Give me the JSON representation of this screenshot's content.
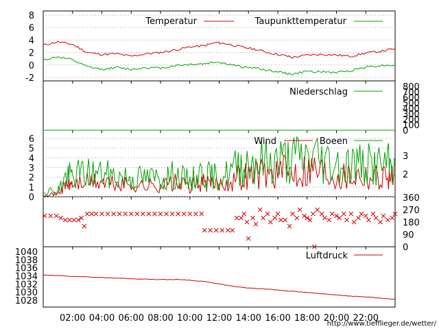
{
  "chart_data": [
    {
      "type": "line",
      "panel": "temperature",
      "ylim": [
        -2,
        8
      ],
      "yticks": [
        "-2",
        "0",
        "2",
        "4",
        "6",
        "8"
      ],
      "grid": true,
      "legend_position": "top-right",
      "series": [
        {
          "name": "Temperatur",
          "color": "#cc0000",
          "points": [
            [
              0,
              3.2
            ],
            [
              1,
              3.7
            ],
            [
              2,
              3.3
            ],
            [
              3,
              2.0
            ],
            [
              4,
              1.7
            ],
            [
              5,
              1.8
            ],
            [
              6,
              1.4
            ],
            [
              7,
              1.8
            ],
            [
              8,
              2.0
            ],
            [
              9,
              2.4
            ],
            [
              10,
              2.9
            ],
            [
              11,
              3.1
            ],
            [
              11.8,
              3.6
            ],
            [
              12.5,
              3.4
            ],
            [
              13.5,
              2.9
            ],
            [
              14.5,
              2.5
            ],
            [
              15.5,
              1.9
            ],
            [
              16.5,
              1.5
            ],
            [
              17,
              1.2
            ],
            [
              18,
              1.6
            ],
            [
              19,
              1.7
            ],
            [
              20,
              1.6
            ],
            [
              21,
              1.4
            ],
            [
              22,
              1.9
            ],
            [
              23,
              2.2
            ],
            [
              24,
              2.6
            ]
          ]
        },
        {
          "name": "Taupunkttemperatur",
          "color": "#00a000",
          "points": [
            [
              0,
              0.8
            ],
            [
              1,
              1.3
            ],
            [
              2,
              0.8
            ],
            [
              3,
              -0.3
            ],
            [
              4,
              -0.7
            ],
            [
              5,
              -0.4
            ],
            [
              6,
              -0.7
            ],
            [
              7,
              -0.4
            ],
            [
              8,
              -0.5
            ],
            [
              9,
              -0.1
            ],
            [
              10,
              0.1
            ],
            [
              11,
              0.2
            ],
            [
              11.8,
              0.5
            ],
            [
              12.5,
              0.2
            ],
            [
              13.5,
              -0.3
            ],
            [
              14.5,
              -0.5
            ],
            [
              15.5,
              -0.9
            ],
            [
              16.5,
              -1.3
            ],
            [
              17,
              -1.5
            ],
            [
              18,
              -1.0
            ],
            [
              19,
              -1.1
            ],
            [
              20,
              -1.2
            ],
            [
              21,
              -0.9
            ],
            [
              22,
              -0.3
            ],
            [
              23,
              -0.1
            ],
            [
              24,
              0.0
            ]
          ]
        }
      ]
    },
    {
      "type": "line",
      "panel": "precipitation",
      "ylim": [
        0,
        800
      ],
      "yticks": [
        "0",
        "100",
        "200",
        "300",
        "400",
        "500",
        "600",
        "700",
        "800"
      ],
      "series": [
        {
          "name": "Niederschlag",
          "color": "#00a000",
          "points": [
            [
              0,
              0
            ],
            [
              24,
              0
            ]
          ]
        }
      ]
    },
    {
      "type": "line",
      "panel": "wind",
      "ylim": [
        0,
        6
      ],
      "yticks": [
        "0",
        "1",
        "2",
        "3",
        "4",
        "5",
        "6"
      ],
      "yticks_right": [
        "2",
        "3"
      ],
      "series": [
        {
          "name": "Wind",
          "color": "#cc0000",
          "points": [
            [
              0,
              0.2
            ],
            [
              1,
              0.3
            ],
            [
              1.5,
              1.2
            ],
            [
              2,
              1.3
            ],
            [
              3,
              1.5
            ],
            [
              4,
              1.5
            ],
            [
              5,
              1.3
            ],
            [
              6,
              1.2
            ],
            [
              7,
              1.1
            ],
            [
              8,
              1.2
            ],
            [
              9,
              1.4
            ],
            [
              10,
              1.0
            ],
            [
              10.8,
              1.5
            ],
            [
              11.5,
              1.2
            ],
            [
              12.5,
              1.5
            ],
            [
              13.5,
              2.1
            ],
            [
              14.5,
              2.5
            ],
            [
              15.5,
              2.4
            ],
            [
              16.5,
              2.6
            ],
            [
              17.5,
              2.8
            ],
            [
              18.5,
              3.0
            ],
            [
              19.5,
              2.5
            ],
            [
              20.5,
              2.2
            ],
            [
              21.5,
              2.4
            ],
            [
              22.5,
              2.1
            ],
            [
              23.5,
              2.2
            ],
            [
              24,
              2.0
            ]
          ]
        },
        {
          "name": "Boeen",
          "color": "#00a000",
          "points": [
            [
              0,
              0.6
            ],
            [
              1,
              0.6
            ],
            [
              1.5,
              2.0
            ],
            [
              2,
              2.2
            ],
            [
              3,
              2.5
            ],
            [
              4,
              2.3
            ],
            [
              5,
              2.1
            ],
            [
              6,
              2.0
            ],
            [
              7,
              1.9
            ],
            [
              8,
              2.0
            ],
            [
              9,
              2.2
            ],
            [
              10,
              1.6
            ],
            [
              10.8,
              2.5
            ],
            [
              11.5,
              2.0
            ],
            [
              12.5,
              2.3
            ],
            [
              13.5,
              3.4
            ],
            [
              14.5,
              3.7
            ],
            [
              15.5,
              3.6
            ],
            [
              16.5,
              3.8
            ],
            [
              17.5,
              4.0
            ],
            [
              18.5,
              4.2
            ],
            [
              19.5,
              3.6
            ],
            [
              20.5,
              3.3
            ],
            [
              21.5,
              3.4
            ],
            [
              22.5,
              3.2
            ],
            [
              23.5,
              3.3
            ],
            [
              24,
              3.0
            ]
          ]
        }
      ]
    },
    {
      "type": "scatter",
      "panel": "wind_direction",
      "ylim": [
        0,
        360
      ],
      "yticks": [
        "0",
        "90",
        "180",
        "270",
        "360"
      ],
      "marker": "x",
      "color": "#cc0000",
      "points": [
        [
          0.1,
          225
        ],
        [
          0.5,
          225
        ],
        [
          0.9,
          225
        ],
        [
          1.2,
          210
        ],
        [
          1.5,
          195
        ],
        [
          1.8,
          195
        ],
        [
          2.1,
          195
        ],
        [
          2.4,
          195
        ],
        [
          2.6,
          210
        ],
        [
          2.8,
          150
        ],
        [
          3.0,
          240
        ],
        [
          3.3,
          240
        ],
        [
          3.6,
          240
        ],
        [
          4.0,
          240
        ],
        [
          4.4,
          240
        ],
        [
          4.8,
          240
        ],
        [
          5.2,
          240
        ],
        [
          5.6,
          240
        ],
        [
          6.0,
          240
        ],
        [
          6.4,
          240
        ],
        [
          6.8,
          240
        ],
        [
          7.2,
          240
        ],
        [
          7.6,
          240
        ],
        [
          8.0,
          240
        ],
        [
          8.4,
          240
        ],
        [
          8.8,
          240
        ],
        [
          9.2,
          240
        ],
        [
          9.6,
          240
        ],
        [
          10.0,
          240
        ],
        [
          10.4,
          240
        ],
        [
          10.8,
          240
        ],
        [
          11.0,
          120
        ],
        [
          11.4,
          120
        ],
        [
          11.8,
          120
        ],
        [
          12.2,
          120
        ],
        [
          12.6,
          120
        ],
        [
          12.9,
          120
        ],
        [
          13.2,
          210
        ],
        [
          13.5,
          210
        ],
        [
          13.7,
          240
        ],
        [
          13.9,
          180
        ],
        [
          14.0,
          60
        ],
        [
          14.3,
          210
        ],
        [
          14.5,
          165
        ],
        [
          14.8,
          270
        ],
        [
          15.0,
          210
        ],
        [
          15.3,
          240
        ],
        [
          15.5,
          180
        ],
        [
          15.8,
          210
        ],
        [
          16.0,
          240
        ],
        [
          16.2,
          195
        ],
        [
          16.5,
          195
        ],
        [
          16.8,
          150
        ],
        [
          17.0,
          240
        ],
        [
          17.3,
          210
        ],
        [
          17.5,
          270
        ],
        [
          17.8,
          225
        ],
        [
          18.0,
          210
        ],
        [
          18.2,
          195
        ],
        [
          18.4,
          240
        ],
        [
          18.5,
          -5
        ],
        [
          18.7,
          270
        ],
        [
          19.0,
          240
        ],
        [
          19.2,
          210
        ],
        [
          19.5,
          195
        ],
        [
          19.7,
          240
        ],
        [
          20.0,
          225
        ],
        [
          20.2,
          210
        ],
        [
          20.5,
          240
        ],
        [
          20.7,
          195
        ],
        [
          21.0,
          240
        ],
        [
          21.2,
          180
        ],
        [
          21.5,
          210
        ],
        [
          21.7,
          240
        ],
        [
          22.0,
          225
        ],
        [
          22.2,
          195
        ],
        [
          22.5,
          240
        ],
        [
          22.7,
          210
        ],
        [
          23.0,
          180
        ],
        [
          23.2,
          225
        ],
        [
          23.5,
          195
        ],
        [
          23.8,
          210
        ],
        [
          24.0,
          240
        ]
      ]
    },
    {
      "type": "line",
      "panel": "pressure",
      "ylim": [
        1026.5,
        1041
      ],
      "yticks": [
        "1028",
        "1030",
        "1032",
        "1034",
        "1036",
        "1038",
        "1040"
      ],
      "series": [
        {
          "name": "Luftdruck",
          "color": "#cc0000",
          "points": [
            [
              0,
              1034.2
            ],
            [
              2,
              1033.9
            ],
            [
              4,
              1033.6
            ],
            [
              6,
              1033.3
            ],
            [
              8,
              1033.1
            ],
            [
              9.5,
              1033.1
            ],
            [
              11,
              1032.6
            ],
            [
              12,
              1032.0
            ],
            [
              13,
              1031.4
            ],
            [
              14,
              1031.0
            ],
            [
              15,
              1030.8
            ],
            [
              16,
              1030.5
            ],
            [
              17,
              1030.2
            ],
            [
              18,
              1029.9
            ],
            [
              19,
              1029.6
            ],
            [
              20,
              1029.3
            ],
            [
              21,
              1029.0
            ],
            [
              22,
              1028.8
            ],
            [
              23,
              1028.5
            ],
            [
              24,
              1028.2
            ]
          ]
        }
      ]
    }
  ],
  "xaxis": {
    "range": [
      0,
      24
    ],
    "ticks": [
      "02:00",
      "04:00",
      "06:00",
      "08:00",
      "10:00",
      "12:00",
      "14:00",
      "16:00",
      "18:00",
      "20:00",
      "22:00"
    ]
  },
  "footer": {
    "url": "http://www.tiefflieger.de/wetter/"
  }
}
